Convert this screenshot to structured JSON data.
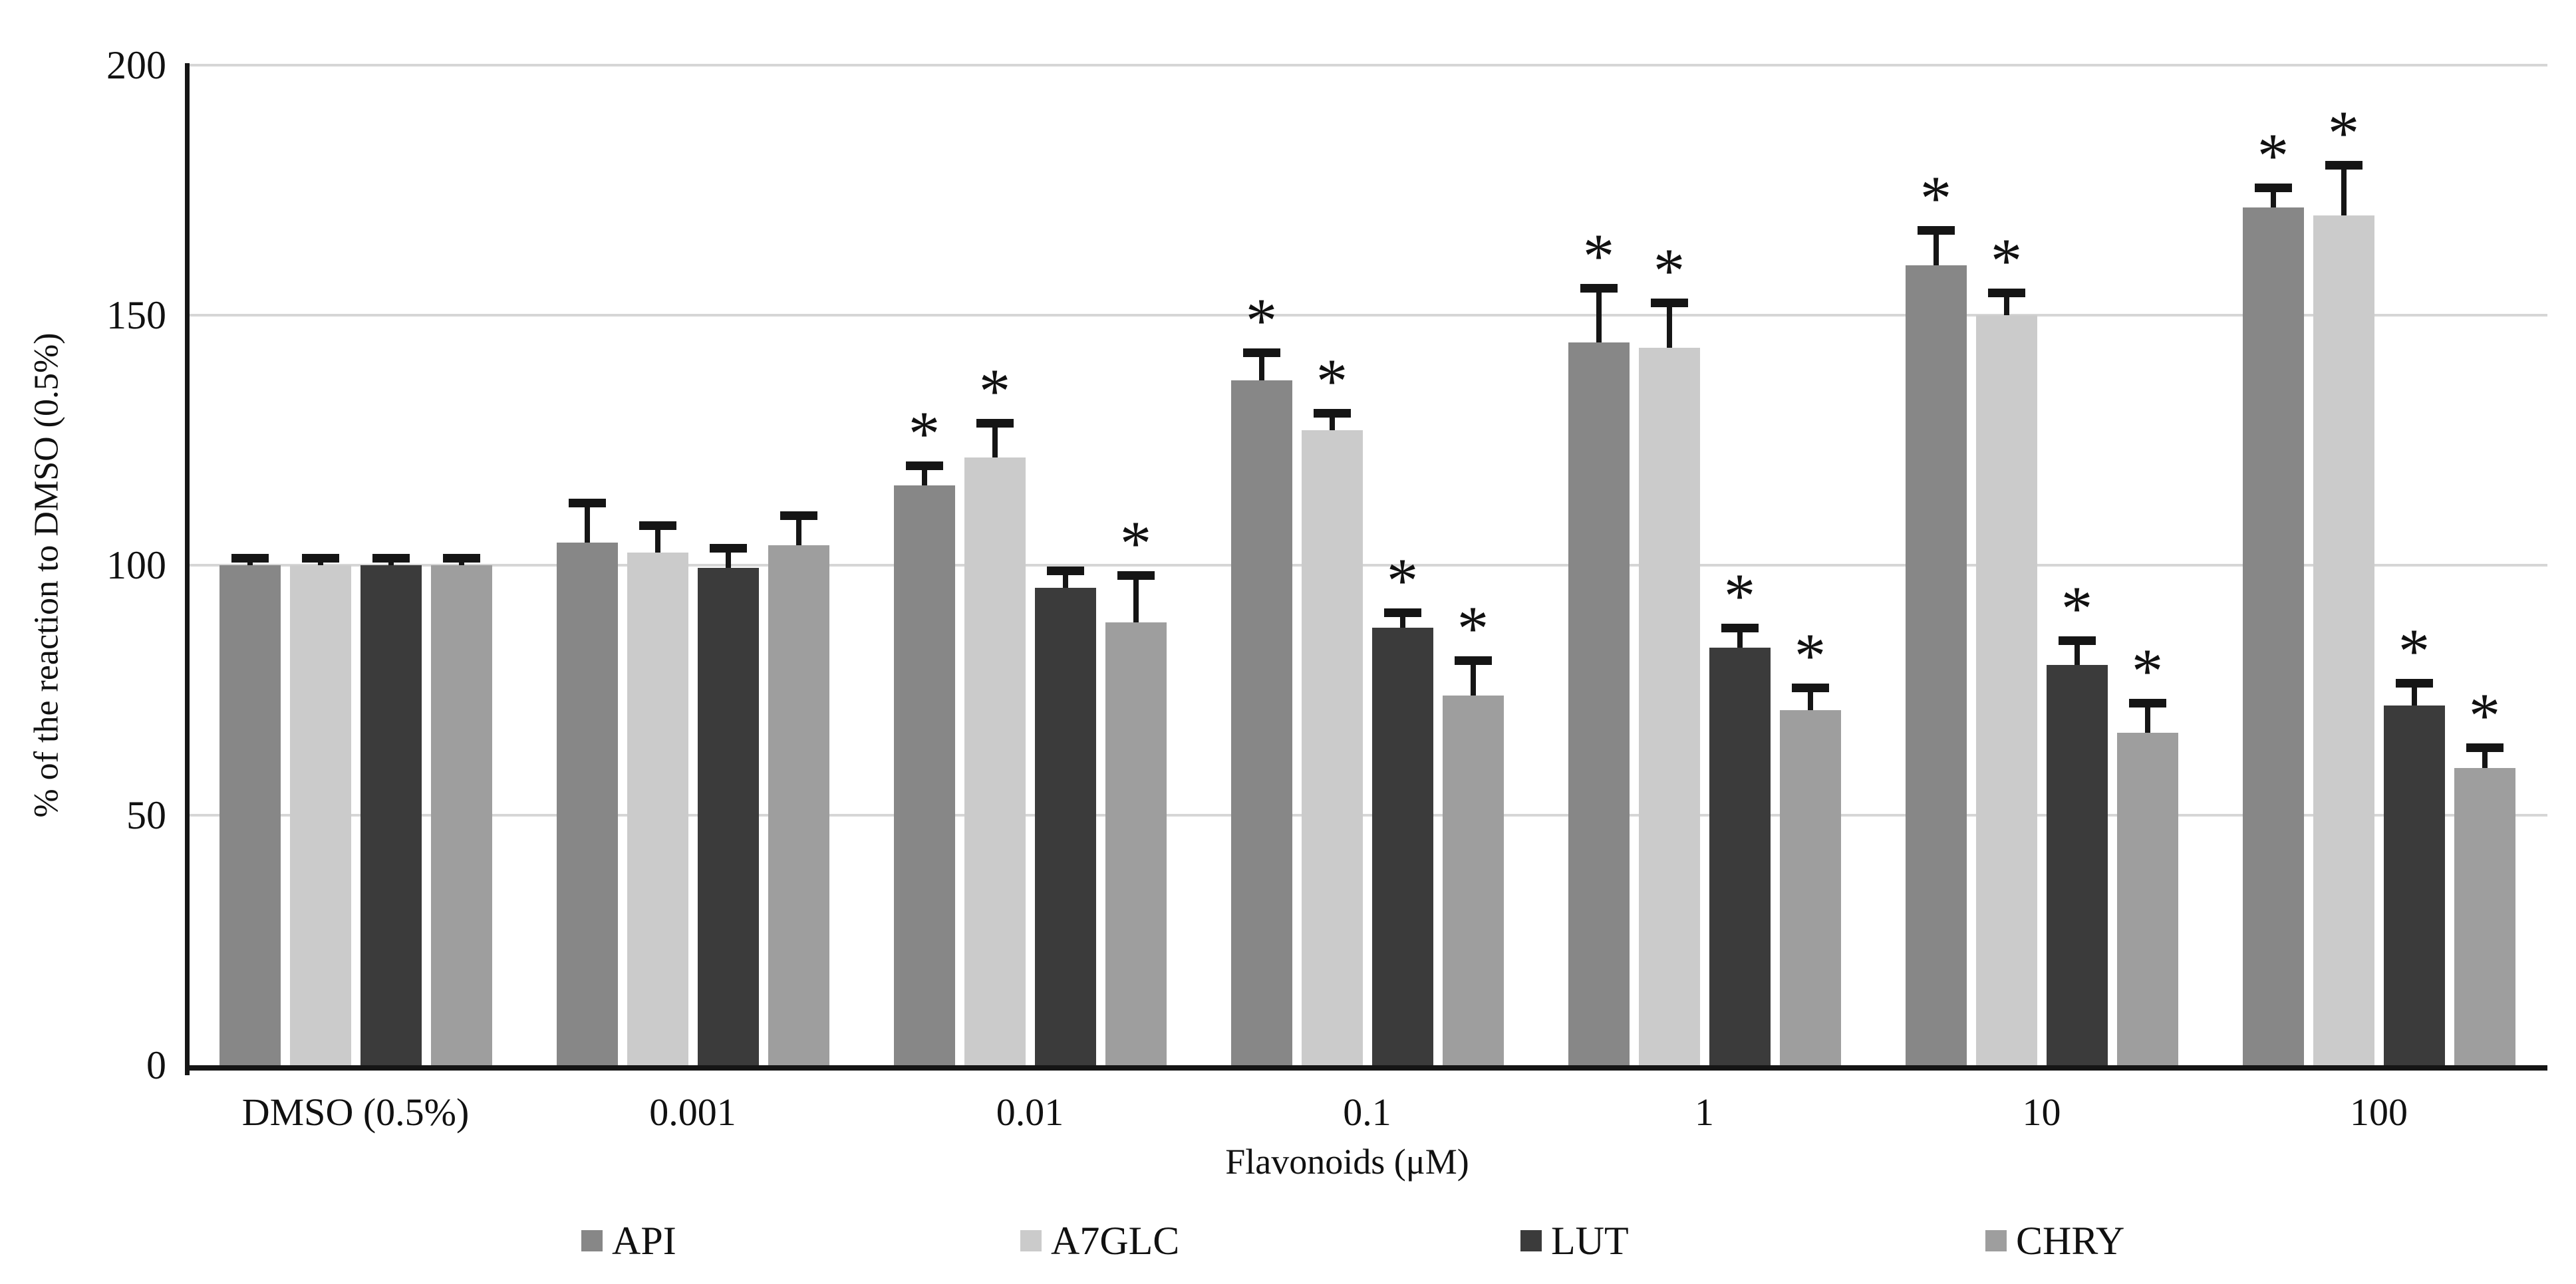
{
  "chart_data": {
    "type": "bar",
    "title": "",
    "xlabel": "Flavonoids (μM)",
    "ylabel": "% of the reaction to DMSO (0.5%)",
    "ylim": [
      0,
      200
    ],
    "yticks": [
      0,
      50,
      100,
      150,
      200
    ],
    "grid": true,
    "legend_position": "bottom",
    "significance_marker": "*",
    "error_bars": "upper",
    "categories": [
      "DMSO (0.5%)",
      "0.001",
      "0.01",
      "0.1",
      "1",
      "10",
      "100"
    ],
    "series": [
      {
        "name": "API",
        "color": "#878787",
        "values": [
          100,
          104.5,
          116,
          137,
          144.5,
          160,
          171.5
        ],
        "errors": [
          1.5,
          8,
          4,
          5.5,
          11,
          7,
          4
        ],
        "significant": [
          false,
          false,
          true,
          true,
          true,
          true,
          true
        ]
      },
      {
        "name": "A7GLC",
        "color": "#cbcbcb",
        "values": [
          100,
          102.5,
          121.5,
          127,
          143.5,
          150,
          170
        ],
        "errors": [
          1.5,
          5.5,
          7,
          3.5,
          9,
          4.5,
          10
        ],
        "significant": [
          false,
          false,
          true,
          true,
          true,
          true,
          true
        ]
      },
      {
        "name": "LUT",
        "color": "#3b3b3b",
        "values": [
          100,
          99.5,
          95.5,
          87.5,
          83.5,
          80,
          72
        ],
        "errors": [
          1.5,
          4,
          3.5,
          3,
          4,
          5,
          4.5
        ],
        "significant": [
          false,
          false,
          false,
          true,
          true,
          true,
          true
        ]
      },
      {
        "name": "CHRY",
        "color": "#9e9e9e",
        "values": [
          100,
          104,
          88.5,
          74,
          71,
          66.5,
          59.5
        ],
        "errors": [
          1.5,
          6,
          9.5,
          7,
          4.5,
          6,
          4
        ],
        "significant": [
          false,
          false,
          true,
          true,
          true,
          true,
          true
        ]
      }
    ]
  }
}
